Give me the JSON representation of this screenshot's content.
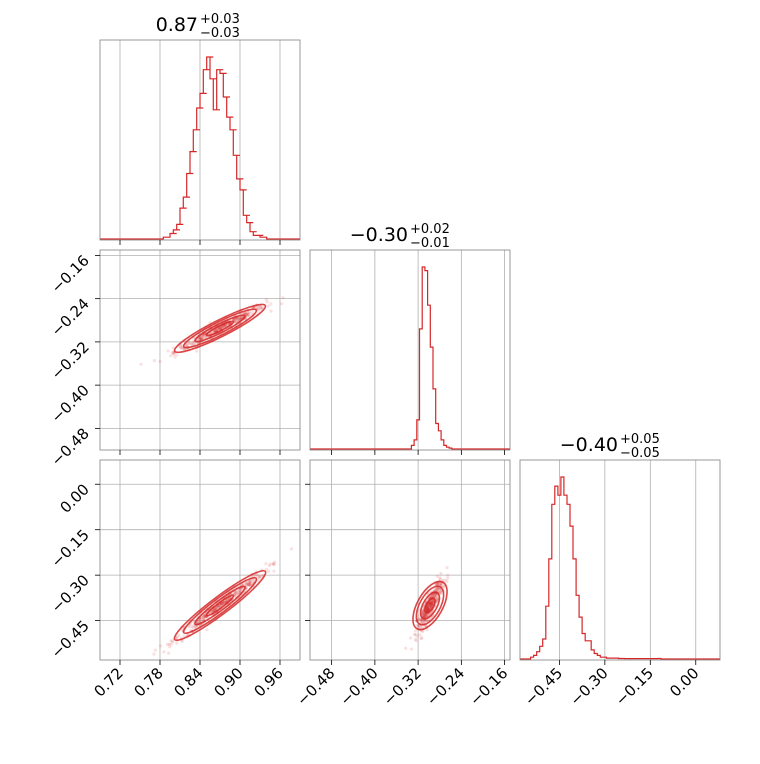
{
  "chart_data": {
    "type": "corner",
    "color": "#d62728",
    "grid": true,
    "parameters": [
      {
        "median": "0.87",
        "plus": "+0.03",
        "minus": "−0.03",
        "range": [
          0.69,
          0.99
        ],
        "ticks": [
          0.72,
          0.78,
          0.84,
          0.9,
          0.96
        ],
        "tick_labels": [
          "0.72",
          "0.78",
          "0.84",
          "0.90",
          "0.96"
        ],
        "hist_x": [
          0.79,
          0.8,
          0.805,
          0.81,
          0.815,
          0.82,
          0.825,
          0.83,
          0.835,
          0.84,
          0.845,
          0.85,
          0.855,
          0.86,
          0.865,
          0.87,
          0.875,
          0.88,
          0.885,
          0.89,
          0.895,
          0.9,
          0.905,
          0.91,
          0.915,
          0.92,
          0.925,
          0.93,
          0.935
        ],
        "hist_y": [
          0.01,
          0.03,
          0.05,
          0.08,
          0.17,
          0.23,
          0.36,
          0.48,
          0.6,
          0.72,
          0.8,
          0.93,
          1.0,
          0.88,
          0.71,
          0.93,
          0.91,
          0.78,
          0.67,
          0.6,
          0.46,
          0.33,
          0.27,
          0.13,
          0.09,
          0.04,
          0.02,
          0.02,
          0.01
        ]
      },
      {
        "median": "−0.30",
        "plus": "+0.02",
        "minus": "−0.01",
        "range": [
          -0.52,
          -0.15
        ],
        "ticks": [
          -0.48,
          -0.4,
          -0.32,
          -0.24,
          -0.16
        ],
        "tick_labels": [
          "−0.48",
          "−0.40",
          "−0.32",
          "−0.24",
          "−0.16"
        ],
        "hist_x": [
          -0.33,
          -0.325,
          -0.32,
          -0.315,
          -0.31,
          -0.305,
          -0.3,
          -0.295,
          -0.29,
          -0.285,
          -0.28,
          -0.275,
          -0.27,
          -0.265,
          -0.26
        ],
        "hist_y": [
          0.02,
          0.05,
          0.16,
          0.66,
          1.0,
          0.98,
          0.79,
          0.56,
          0.33,
          0.14,
          0.1,
          0.05,
          0.02,
          0.01,
          0.005
        ]
      },
      {
        "median": "−0.40",
        "plus": "+0.05",
        "minus": "−0.05",
        "range": [
          -0.58,
          0.08
        ],
        "ticks": [
          -0.45,
          -0.3,
          -0.15,
          0.0
        ],
        "tick_labels": [
          "−0.45",
          "−0.30",
          "−0.15",
          "0.00"
        ],
        "hist_x": [
          -0.54,
          -0.53,
          -0.52,
          -0.51,
          -0.5,
          -0.49,
          -0.48,
          -0.47,
          -0.46,
          -0.45,
          -0.44,
          -0.43,
          -0.42,
          -0.41,
          -0.4,
          -0.39,
          -0.38,
          -0.37,
          -0.36,
          -0.35,
          -0.34,
          -0.33,
          -0.32,
          -0.31,
          -0.3,
          -0.29,
          -0.28,
          -0.27,
          -0.26,
          -0.25,
          -0.24,
          -0.23,
          -0.22,
          -0.12
        ],
        "hist_y": [
          0.01,
          0.02,
          0.04,
          0.07,
          0.11,
          0.29,
          0.55,
          0.85,
          0.95,
          0.9,
          1.0,
          0.9,
          0.85,
          0.73,
          0.55,
          0.35,
          0.23,
          0.14,
          0.1,
          0.1,
          0.05,
          0.03,
          0.02,
          0.01,
          0.01,
          0.005,
          0.005,
          0.005,
          0.005,
          0.003,
          0.003,
          0.002,
          0.002,
          0.003
        ]
      }
    ],
    "scatter": [
      {
        "row": 1,
        "col": 0,
        "center": [
          0.87,
          -0.295
        ],
        "slope": 0.62,
        "spread_x": 0.034,
        "spread_perp": 0.006
      },
      {
        "row": 2,
        "col": 0,
        "center": [
          0.87,
          -0.4
        ],
        "slope": 1.65,
        "spread_x": 0.034,
        "spread_perp": 0.012
      },
      {
        "row": 2,
        "col": 1,
        "center": [
          -0.298,
          -0.4
        ],
        "slope": 3.2,
        "spread_x": 0.012,
        "spread_perp": 0.02
      }
    ]
  }
}
